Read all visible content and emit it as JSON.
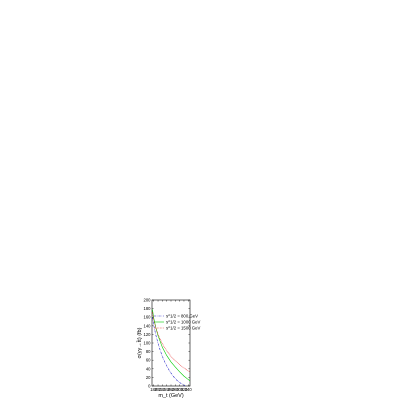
{
  "chart_data": {
    "type": "line",
    "title": "",
    "xlabel": "m_t (GeV)",
    "ylabel": "σ(γγ→t̄t) (fb)",
    "xlim": [
      172,
      348
    ],
    "ylim": [
      0,
      200
    ],
    "xticks": [
      180,
      200,
      220,
      240,
      260,
      280,
      300,
      320,
      340
    ],
    "yticks": [
      0,
      20,
      40,
      60,
      80,
      100,
      120,
      140,
      160,
      180,
      200
    ],
    "grid": false,
    "legend_position": "top-right",
    "series": [
      {
        "name": "s^1/2 = 800 GeV",
        "color": "#2323c8",
        "dash": "dash-dot",
        "x": [
          174,
          180,
          190,
          200,
          210,
          220,
          230,
          240,
          250,
          260,
          270,
          280,
          290,
          300,
          310,
          320,
          325
        ],
        "y": [
          160,
          141,
          118,
          99,
          83,
          69,
          57,
          47,
          38,
          30,
          23,
          17,
          12,
          8,
          5,
          2,
          0
        ]
      },
      {
        "name": "s^1/2 = 1000 GeV",
        "color": "#00cc00",
        "dash": "solid",
        "x": [
          174,
          180,
          190,
          200,
          220,
          240,
          260,
          280,
          300,
          320,
          340,
          348
        ],
        "y": [
          178,
          158,
          135,
          117,
          90,
          71,
          56,
          44,
          33,
          23,
          15,
          12
        ]
      },
      {
        "name": "s^1/2 = 1500 GeV",
        "color": "#e00000",
        "dash": "dotted",
        "x": [
          174,
          180,
          190,
          200,
          220,
          240,
          260,
          280,
          300,
          320,
          340,
          348
        ],
        "y": [
          172,
          154,
          135,
          120,
          98,
          82,
          69,
          59,
          50,
          42,
          35,
          32
        ]
      }
    ]
  }
}
